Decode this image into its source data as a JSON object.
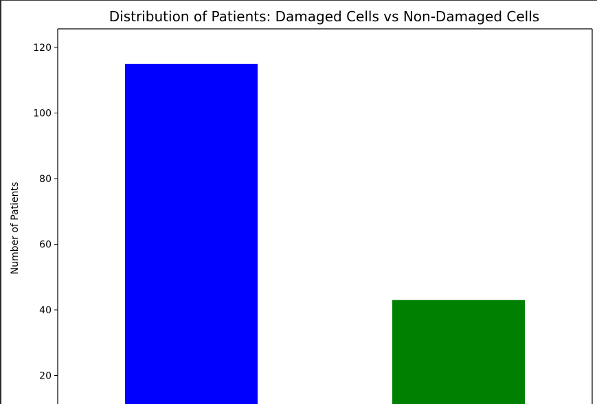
{
  "chart_data": {
    "type": "bar",
    "title": "Distribution of Patients: Damaged Cells vs Non-Damaged Cells",
    "xlabel": "",
    "ylabel": "Number of Patients",
    "categories": [
      "",
      ""
    ],
    "values": [
      115,
      43
    ],
    "colors": [
      "#0000ff",
      "#008000"
    ],
    "ylim": [
      0,
      120
    ],
    "yticks": [
      20,
      40,
      60,
      80,
      100,
      120
    ],
    "grid": false
  }
}
